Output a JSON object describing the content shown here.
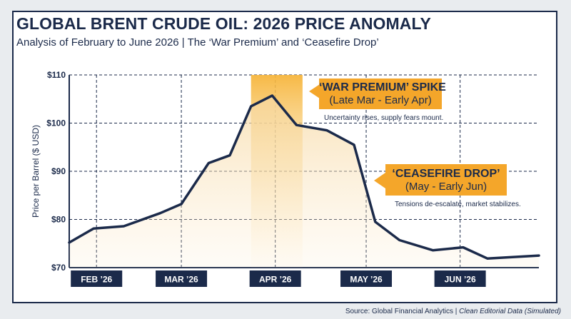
{
  "header": {
    "title": "GLOBAL BRENT CRUDE OIL: 2026 PRICE ANOMALY",
    "subtitle": "Analysis of February to June 2026 | The ‘War Premium’ and ‘Ceasefire Drop’"
  },
  "footer": {
    "source_prefix": "Source: Global Financial Analytics | ",
    "source_italic": "Clean Editorial Data (Simulated)"
  },
  "callouts": {
    "war": {
      "title": "‘WAR PREMIUM’ SPIKE",
      "range": "(Late Mar - Early Apr)",
      "note": "Uncertainty rises, supply fears mount."
    },
    "ceasefire": {
      "title": "‘CEASEFIRE DROP’",
      "range": "(May - Early Jun)",
      "note": "Tensions de-escalate, market stabilizes."
    }
  },
  "colors": {
    "navy": "#1b2a4a",
    "accent": "#f4a62a",
    "background": "#ffffff"
  },
  "chart_data": {
    "type": "line",
    "title": "GLOBAL BRENT CRUDE OIL: 2026 PRICE ANOMALY",
    "ylabel": "Price per Barrel ($ USD)",
    "ylim": [
      70,
      110
    ],
    "y_ticks": [
      70,
      80,
      90,
      100,
      110
    ],
    "y_tick_labels": [
      "$70",
      "$80",
      "$90",
      "$100",
      "$110"
    ],
    "x_ticks": [
      "2026-02-01",
      "2026-03-01",
      "2026-04-01",
      "2026-05-01",
      "2026-06-01"
    ],
    "x_tick_labels": [
      "FEB ’26",
      "MAR ’26",
      "APR ’26",
      "MAY ’26",
      "JUN ’26"
    ],
    "x_range": [
      "2026-01-23",
      "2026-06-27"
    ],
    "grid": true,
    "highlight_x": [
      "2026-03-24",
      "2026-04-10"
    ],
    "series": [
      {
        "x": [
          "2026-01-23",
          "2026-01-31",
          "2026-02-10",
          "2026-02-22",
          "2026-03-01",
          "2026-03-10",
          "2026-03-17",
          "2026-03-24",
          "2026-03-31",
          "2026-04-08",
          "2026-04-18",
          "2026-04-27",
          "2026-05-04",
          "2026-05-12",
          "2026-05-23",
          "2026-06-02",
          "2026-06-10",
          "2026-06-27"
        ],
        "values": [
          75.2,
          78.1,
          78.6,
          81.3,
          83.2,
          91.7,
          93.3,
          103.5,
          105.7,
          99.6,
          98.5,
          95.5,
          79.5,
          75.7,
          73.6,
          74.2,
          71.9,
          72.5
        ]
      }
    ]
  }
}
